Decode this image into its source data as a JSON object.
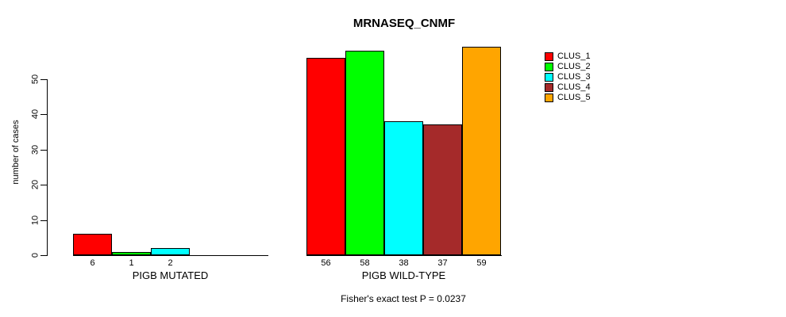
{
  "chart_data": {
    "type": "bar",
    "title": "MRNASEQ_CNMF",
    "ylabel": "number of cases",
    "categories": [
      "PIGB MUTATED",
      "PIGB WILD-TYPE"
    ],
    "series": [
      {
        "name": "CLUS_1",
        "color": "#ff0000",
        "values": [
          6,
          56
        ]
      },
      {
        "name": "CLUS_2",
        "color": "#00ff00",
        "values": [
          1,
          58
        ]
      },
      {
        "name": "CLUS_3",
        "color": "#00ffff",
        "values": [
          2,
          38
        ]
      },
      {
        "name": "CLUS_4",
        "color": "#a52a2a",
        "values": [
          0,
          37
        ]
      },
      {
        "name": "CLUS_5",
        "color": "#ffa500",
        "values": [
          0,
          59
        ]
      }
    ],
    "yticks": [
      0,
      10,
      20,
      30,
      40,
      50
    ],
    "ylim": [
      0,
      59.5
    ],
    "grid": false,
    "bar_value_labels_shown": true,
    "legend_position": "right",
    "annotation": "Fisher's exact test P = 0.0237",
    "axis_color": "#000000",
    "background_color": "#ffffff"
  }
}
